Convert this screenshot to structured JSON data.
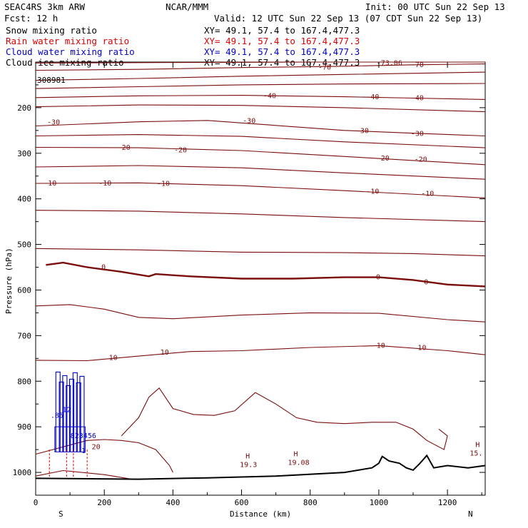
{
  "header": {
    "left_line1": "SEAC4RS  3km ARW",
    "center_line1": "NCAR/MMM",
    "right_line1": "Init: 00 UTC Sun 22 Sep 13",
    "left_line2": "Fcst:   12 h",
    "right_line2": "Valid: 12 UTC Sun 22 Sep 13 (07 CDT Sun 22 Sep 13)"
  },
  "fields": [
    {
      "label": "Snow mixing ratio",
      "xy": "XY=  49.1, 57.4 to 167.4,477.3",
      "color": "#000000"
    },
    {
      "label": "Rain water mixing ratio",
      "xy": "XY=  49.1, 57.4 to 167.4,477.3",
      "color": "#dd0000"
    },
    {
      "label": "Cloud water mixing ratio",
      "xy": "XY=  49.1, 57.4 to 167.4,477.3",
      "color": "#0000cc"
    },
    {
      "label": "Cloud ice mixing ratio",
      "xy": "XY=  49.1, 57.4 to 167.4,477.3",
      "color": "#000000"
    }
  ],
  "chart_data": {
    "type": "line",
    "xlabel": "Distance (km)",
    "ylabel": "Pressure (hPa)",
    "xlim": [
      0,
      1310
    ],
    "ylim": [
      1050,
      100
    ],
    "y_log": false,
    "x_ticks": [
      "0",
      "200",
      "400",
      "600",
      "800",
      "1000",
      "1200"
    ],
    "y_ticks": [
      "200",
      "300",
      "400",
      "500",
      "600",
      "700",
      "800",
      "900",
      "1000"
    ],
    "x_end_labels": {
      "left": "S",
      "right": "N"
    },
    "colors": {
      "temperature": "#7a0c0c",
      "freezing_level": "#7a0c0c",
      "terrain": "#000000",
      "cloud_water": "#0000cc",
      "rain": "#dd0000"
    },
    "temperature_contours": [
      {
        "label": "-70",
        "points": [
          [
            0,
            118
          ],
          [
            300,
            116
          ],
          [
            600,
            112
          ],
          [
            900,
            109
          ],
          [
            1100,
            106
          ],
          [
            1310,
            104
          ]
        ],
        "label_at": [
          [
            840,
            112
          ],
          [
            1110,
            106
          ]
        ]
      },
      {
        "label": "-73.06",
        "points": [
          [
            0,
            102
          ],
          [
            400,
            101
          ],
          [
            800,
            100
          ],
          [
            1310,
            100
          ]
        ],
        "label_at": [
          [
            1010,
            102
          ]
        ]
      },
      {
        "label": "",
        "points": [
          [
            0,
            140
          ],
          [
            300,
            136
          ],
          [
            600,
            131
          ],
          [
            900,
            127
          ],
          [
            1310,
            122
          ]
        ],
        "label_at": []
      },
      {
        "label": "",
        "points": [
          [
            0,
            158
          ],
          [
            300,
            154
          ],
          [
            600,
            150
          ],
          [
            900,
            148
          ],
          [
            1310,
            147
          ]
        ],
        "label_at": []
      },
      {
        "label": "-40",
        "points": [
          [
            0,
            178
          ],
          [
            300,
            174
          ],
          [
            600,
            173
          ],
          [
            900,
            176
          ],
          [
            1100,
            179
          ],
          [
            1310,
            182
          ]
        ],
        "label_at": [
          [
            680,
            174
          ],
          [
            980,
            177
          ],
          [
            1110,
            179
          ]
        ]
      },
      {
        "label": "",
        "points": [
          [
            0,
            198
          ],
          [
            300,
            194
          ],
          [
            600,
            195
          ],
          [
            900,
            200
          ],
          [
            1310,
            209
          ]
        ],
        "label_at": []
      },
      {
        "label": "-30",
        "points": [
          [
            0,
            240
          ],
          [
            300,
            231
          ],
          [
            500,
            228
          ],
          [
            900,
            250
          ],
          [
            1100,
            256
          ],
          [
            1310,
            262
          ]
        ],
        "label_at": [
          [
            50,
            232
          ],
          [
            620,
            229
          ],
          [
            950,
            251
          ],
          [
            1110,
            257
          ]
        ]
      },
      {
        "label": "",
        "points": [
          [
            0,
            262
          ],
          [
            300,
            259
          ],
          [
            600,
            263
          ],
          [
            900,
            275
          ],
          [
            1310,
            288
          ]
        ],
        "label_at": []
      },
      {
        "label": "-20",
        "points": [
          [
            0,
            287
          ],
          [
            300,
            288
          ],
          [
            600,
            294
          ],
          [
            900,
            307
          ],
          [
            1310,
            325
          ]
        ],
        "label_at": [
          [
            255,
            288
          ],
          [
            420,
            293
          ],
          [
            1010,
            311
          ],
          [
            1120,
            314
          ]
        ]
      },
      {
        "label": "",
        "points": [
          [
            0,
            330
          ],
          [
            300,
            327
          ],
          [
            600,
            332
          ],
          [
            900,
            343
          ],
          [
            1310,
            357
          ]
        ],
        "label_at": []
      },
      {
        "label": "-10",
        "points": [
          [
            0,
            366
          ],
          [
            300,
            365
          ],
          [
            600,
            371
          ],
          [
            900,
            382
          ],
          [
            1310,
            398
          ]
        ],
        "label_at": [
          [
            40,
            366
          ],
          [
            200,
            366
          ],
          [
            370,
            367
          ],
          [
            980,
            384
          ],
          [
            1140,
            389
          ]
        ]
      },
      {
        "label": "",
        "points": [
          [
            0,
            425
          ],
          [
            300,
            427
          ],
          [
            600,
            433
          ],
          [
            900,
            441
          ],
          [
            1310,
            450
          ]
        ],
        "label_at": []
      },
      {
        "label": "",
        "points": [
          [
            0,
            509
          ],
          [
            300,
            512
          ],
          [
            600,
            517
          ],
          [
            900,
            518
          ],
          [
            1100,
            520
          ],
          [
            1310,
            525
          ]
        ],
        "label_at": []
      },
      {
        "label": "",
        "points": [
          [
            0,
            635
          ],
          [
            100,
            632
          ],
          [
            200,
            642
          ],
          [
            300,
            660
          ],
          [
            400,
            663
          ],
          [
            600,
            655
          ],
          [
            800,
            650
          ],
          [
            1000,
            651
          ],
          [
            1200,
            665
          ],
          [
            1310,
            670
          ]
        ],
        "label_at": []
      },
      {
        "label": "10",
        "points": [
          [
            0,
            754
          ],
          [
            150,
            755
          ],
          [
            300,
            745
          ],
          [
            450,
            735
          ],
          [
            600,
            733
          ],
          [
            800,
            726
          ],
          [
            1000,
            722
          ],
          [
            1200,
            733
          ],
          [
            1310,
            742
          ]
        ],
        "label_at": [
          [
            230,
            749
          ],
          [
            380,
            737
          ],
          [
            1010,
            722
          ],
          [
            1130,
            727
          ]
        ]
      },
      {
        "label": "",
        "points": [
          [
            250,
            920
          ],
          [
            300,
            880
          ],
          [
            330,
            835
          ],
          [
            360,
            815
          ],
          [
            400,
            860
          ],
          [
            460,
            873
          ],
          [
            520,
            875
          ],
          [
            580,
            865
          ],
          [
            640,
            825
          ],
          [
            700,
            850
          ],
          [
            760,
            880
          ],
          [
            820,
            890
          ],
          [
            900,
            893
          ],
          [
            980,
            890
          ],
          [
            1050,
            890
          ],
          [
            1100,
            905
          ],
          [
            1140,
            930
          ],
          [
            1190,
            950
          ],
          [
            1200,
            920
          ],
          [
            1175,
            905
          ]
        ],
        "label_at": []
      },
      {
        "label": "20",
        "points": [
          [
            0,
            960
          ],
          [
            50,
            950
          ],
          [
            100,
            940
          ],
          [
            150,
            930
          ],
          [
            200,
            928
          ],
          [
            250,
            930
          ],
          [
            300,
            935
          ],
          [
            350,
            950
          ],
          [
            390,
            985
          ],
          [
            400,
            1000
          ]
        ],
        "label_at": [
          [
            180,
            944
          ]
        ]
      },
      {
        "label": "",
        "points": [
          [
            0,
            1008
          ],
          [
            80,
            996
          ],
          [
            200,
            1005
          ],
          [
            280,
            1015
          ]
        ],
        "label_at": []
      }
    ],
    "freezing_level": {
      "label": "0",
      "points": [
        [
          30,
          545
        ],
        [
          80,
          540
        ],
        [
          150,
          550
        ],
        [
          250,
          560
        ],
        [
          330,
          570
        ],
        [
          350,
          565
        ],
        [
          450,
          570
        ],
        [
          600,
          575
        ],
        [
          750,
          575
        ],
        [
          900,
          572
        ],
        [
          1000,
          572
        ],
        [
          1100,
          578
        ],
        [
          1200,
          588
        ],
        [
          1310,
          592
        ]
      ],
      "label_at": [
        [
          200,
          550
        ],
        [
          1000,
          572
        ],
        [
          1140,
          583
        ]
      ]
    },
    "terrain": [
      [
        0,
        1013
      ],
      [
        300,
        1015
      ],
      [
        500,
        1012
      ],
      [
        700,
        1008
      ],
      [
        900,
        1000
      ],
      [
        980,
        990
      ],
      [
        1000,
        980
      ],
      [
        1010,
        965
      ],
      [
        1030,
        975
      ],
      [
        1060,
        980
      ],
      [
        1080,
        990
      ],
      [
        1100,
        995
      ],
      [
        1120,
        980
      ],
      [
        1140,
        963
      ],
      [
        1160,
        990
      ],
      [
        1200,
        985
      ],
      [
        1260,
        990
      ],
      [
        1310,
        985
      ]
    ],
    "highs": [
      {
        "label": "H",
        "value": "19.3",
        "x": 620,
        "p": 985
      },
      {
        "label": "H",
        "value": "19.08",
        "x": 760,
        "p": 980
      },
      {
        "label": "H",
        "value": "15.",
        "x": 1290,
        "p": 960
      }
    ],
    "cloud_water_cells": [
      {
        "x": [
          60,
          140
        ],
        "p_top": 780,
        "p_bottom": 955
      }
    ],
    "cloud_labels": [
      ".85",
      "12",
      "823456",
      "1"
    ],
    "rain_shafts_x": [
      40,
      90,
      110,
      150
    ],
    "top_label": "308981"
  }
}
